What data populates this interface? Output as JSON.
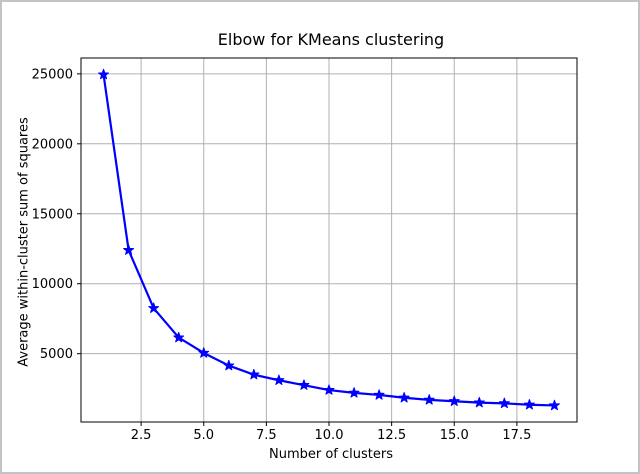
{
  "chart_data": {
    "type": "line",
    "title": "Elbow for KMeans clustering",
    "xlabel": "Number of clusters",
    "ylabel": "Average within-cluster sum of squares",
    "series": [
      {
        "name": "average-within-cluster-sum-of-squares",
        "x": [
          1,
          2,
          3,
          4,
          5,
          6,
          7,
          8,
          9,
          10,
          11,
          12,
          13,
          14,
          15,
          16,
          17,
          18,
          19
        ],
        "y": [
          24950,
          12400,
          8250,
          6150,
          5050,
          4150,
          3500,
          3100,
          2750,
          2400,
          2200,
          2050,
          1850,
          1700,
          1600,
          1500,
          1450,
          1350,
          1300
        ],
        "color": "#0000ff",
        "marker": "star"
      }
    ],
    "xlim": [
      0.1,
      19.9
    ],
    "ylim": [
      117,
      26133
    ],
    "xticks": [
      2.5,
      5.0,
      7.5,
      10.0,
      12.5,
      15.0,
      17.5
    ],
    "xtick_labels": [
      "2.5",
      "5.0",
      "7.5",
      "10.0",
      "12.5",
      "15.0",
      "17.5"
    ],
    "yticks": [
      5000,
      10000,
      15000,
      20000,
      25000
    ],
    "ytick_labels": [
      "5000",
      "10000",
      "15000",
      "20000",
      "25000"
    ],
    "grid": true,
    "grid_color": "#b0b0b0",
    "spine_color": "#000000",
    "tick_label_color": "#000000",
    "background_color": "#ffffff",
    "legend": null
  }
}
